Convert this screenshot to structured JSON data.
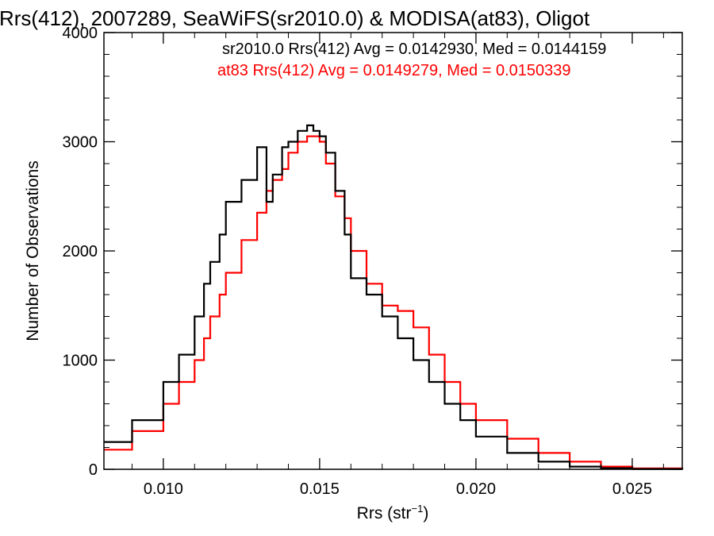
{
  "chart_data": {
    "type": "line",
    "title": "Rrs(412), 2007289, SeaWiFS(sr2010.0) & MODISA(at83), Oligot",
    "xlabel": "Rrs (str",
    "xlabel_sup": "−1",
    "xlabel_suffix": ")",
    "ylabel": "Number of Observations",
    "xlim": [
      0.0081,
      0.0266
    ],
    "ylim": [
      0,
      4000
    ],
    "x_ticks": [
      0.01,
      0.015,
      0.02,
      0.025
    ],
    "x_tick_labels": [
      "0.010",
      "0.015",
      "0.020",
      "0.025"
    ],
    "y_ticks": [
      0,
      1000,
      2000,
      3000,
      4000
    ],
    "y_tick_labels": [
      "0",
      "1000",
      "2000",
      "3000",
      "4000"
    ],
    "grid": false,
    "colors": {
      "series_1": "#000000",
      "series_2": "#ff0000"
    },
    "annotations": [
      "sr2010.0 Rrs(412) Avg = 0.0142930, Med = 0.0144159",
      "at83 Rrs(412) Avg = 0.0149279, Med = 0.0150339"
    ],
    "series": [
      {
        "name": "sr2010.0",
        "x": [
          0.0081,
          0.009,
          0.01,
          0.0105,
          0.011,
          0.0113,
          0.0115,
          0.0118,
          0.012,
          0.0125,
          0.013,
          0.0133,
          0.0135,
          0.0138,
          0.014,
          0.0143,
          0.0146,
          0.0148,
          0.015,
          0.0152,
          0.0155,
          0.0158,
          0.016,
          0.0165,
          0.017,
          0.0175,
          0.018,
          0.0185,
          0.019,
          0.0195,
          0.02,
          0.021,
          0.022,
          0.023,
          0.024,
          0.025,
          0.0266
        ],
        "values": [
          250,
          450,
          800,
          1050,
          1400,
          1700,
          1900,
          2150,
          2450,
          2650,
          2950,
          2450,
          2700,
          2950,
          3000,
          3100,
          3150,
          3100,
          3050,
          2900,
          2550,
          2150,
          1750,
          1600,
          1400,
          1200,
          1000,
          800,
          600,
          450,
          300,
          150,
          70,
          25,
          10,
          3,
          0
        ]
      },
      {
        "name": "at83",
        "x": [
          0.0081,
          0.009,
          0.01,
          0.0105,
          0.011,
          0.0113,
          0.0115,
          0.0118,
          0.012,
          0.0125,
          0.013,
          0.0133,
          0.0135,
          0.0138,
          0.014,
          0.0143,
          0.0146,
          0.0148,
          0.015,
          0.0152,
          0.0155,
          0.0158,
          0.016,
          0.0165,
          0.017,
          0.0175,
          0.018,
          0.0185,
          0.019,
          0.0195,
          0.02,
          0.021,
          0.022,
          0.023,
          0.024,
          0.025,
          0.0266
        ],
        "values": [
          180,
          350,
          600,
          800,
          1000,
          1200,
          1400,
          1600,
          1800,
          2100,
          2350,
          2550,
          2650,
          2750,
          2900,
          3000,
          3050,
          3050,
          3000,
          2800,
          2500,
          2300,
          2000,
          1700,
          1500,
          1450,
          1300,
          1050,
          800,
          600,
          450,
          280,
          150,
          70,
          25,
          8,
          0
        ]
      }
    ]
  }
}
